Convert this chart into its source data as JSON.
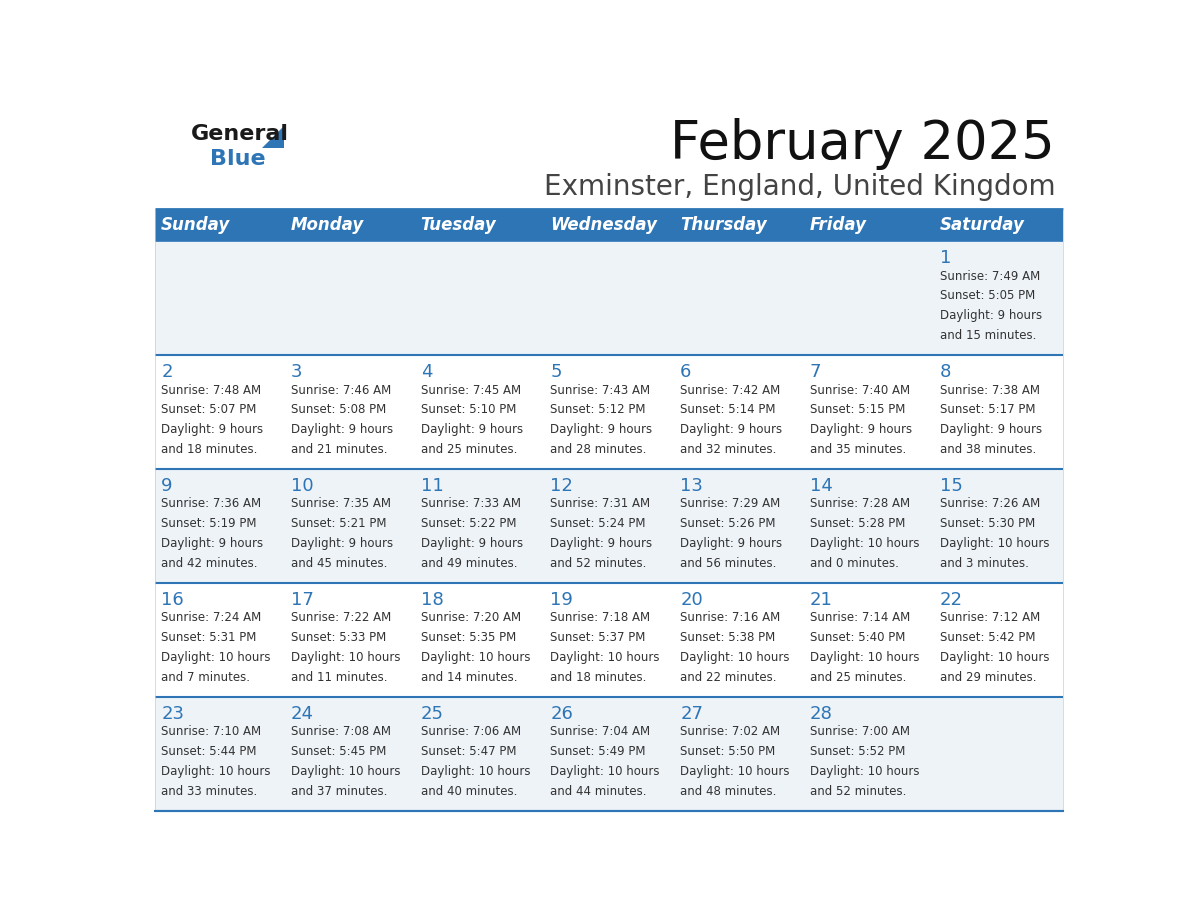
{
  "title": "February 2025",
  "subtitle": "Exminster, England, United Kingdom",
  "header_bg": "#2E75B6",
  "header_text_color": "#FFFFFF",
  "cell_bg_light": "#EEF3F8",
  "cell_bg_white": "#FFFFFF",
  "day_number_color": "#2E75B6",
  "info_text_color": "#333333",
  "separator_color": "#2E75B6",
  "days_of_week": [
    "Sunday",
    "Monday",
    "Tuesday",
    "Wednesday",
    "Thursday",
    "Friday",
    "Saturday"
  ],
  "calendar_data": [
    [
      null,
      null,
      null,
      null,
      null,
      null,
      {
        "day": "1",
        "sunrise": "7:49 AM",
        "sunset": "5:05 PM",
        "daylight_h": "9 hours",
        "daylight_m": "and 15 minutes."
      }
    ],
    [
      {
        "day": "2",
        "sunrise": "7:48 AM",
        "sunset": "5:07 PM",
        "daylight_h": "9 hours",
        "daylight_m": "and 18 minutes."
      },
      {
        "day": "3",
        "sunrise": "7:46 AM",
        "sunset": "5:08 PM",
        "daylight_h": "9 hours",
        "daylight_m": "and 21 minutes."
      },
      {
        "day": "4",
        "sunrise": "7:45 AM",
        "sunset": "5:10 PM",
        "daylight_h": "9 hours",
        "daylight_m": "and 25 minutes."
      },
      {
        "day": "5",
        "sunrise": "7:43 AM",
        "sunset": "5:12 PM",
        "daylight_h": "9 hours",
        "daylight_m": "and 28 minutes."
      },
      {
        "day": "6",
        "sunrise": "7:42 AM",
        "sunset": "5:14 PM",
        "daylight_h": "9 hours",
        "daylight_m": "and 32 minutes."
      },
      {
        "day": "7",
        "sunrise": "7:40 AM",
        "sunset": "5:15 PM",
        "daylight_h": "9 hours",
        "daylight_m": "and 35 minutes."
      },
      {
        "day": "8",
        "sunrise": "7:38 AM",
        "sunset": "5:17 PM",
        "daylight_h": "9 hours",
        "daylight_m": "and 38 minutes."
      }
    ],
    [
      {
        "day": "9",
        "sunrise": "7:36 AM",
        "sunset": "5:19 PM",
        "daylight_h": "9 hours",
        "daylight_m": "and 42 minutes."
      },
      {
        "day": "10",
        "sunrise": "7:35 AM",
        "sunset": "5:21 PM",
        "daylight_h": "9 hours",
        "daylight_m": "and 45 minutes."
      },
      {
        "day": "11",
        "sunrise": "7:33 AM",
        "sunset": "5:22 PM",
        "daylight_h": "9 hours",
        "daylight_m": "and 49 minutes."
      },
      {
        "day": "12",
        "sunrise": "7:31 AM",
        "sunset": "5:24 PM",
        "daylight_h": "9 hours",
        "daylight_m": "and 52 minutes."
      },
      {
        "day": "13",
        "sunrise": "7:29 AM",
        "sunset": "5:26 PM",
        "daylight_h": "9 hours",
        "daylight_m": "and 56 minutes."
      },
      {
        "day": "14",
        "sunrise": "7:28 AM",
        "sunset": "5:28 PM",
        "daylight_h": "10 hours",
        "daylight_m": "and 0 minutes."
      },
      {
        "day": "15",
        "sunrise": "7:26 AM",
        "sunset": "5:30 PM",
        "daylight_h": "10 hours",
        "daylight_m": "and 3 minutes."
      }
    ],
    [
      {
        "day": "16",
        "sunrise": "7:24 AM",
        "sunset": "5:31 PM",
        "daylight_h": "10 hours",
        "daylight_m": "and 7 minutes."
      },
      {
        "day": "17",
        "sunrise": "7:22 AM",
        "sunset": "5:33 PM",
        "daylight_h": "10 hours",
        "daylight_m": "and 11 minutes."
      },
      {
        "day": "18",
        "sunrise": "7:20 AM",
        "sunset": "5:35 PM",
        "daylight_h": "10 hours",
        "daylight_m": "and 14 minutes."
      },
      {
        "day": "19",
        "sunrise": "7:18 AM",
        "sunset": "5:37 PM",
        "daylight_h": "10 hours",
        "daylight_m": "and 18 minutes."
      },
      {
        "day": "20",
        "sunrise": "7:16 AM",
        "sunset": "5:38 PM",
        "daylight_h": "10 hours",
        "daylight_m": "and 22 minutes."
      },
      {
        "day": "21",
        "sunrise": "7:14 AM",
        "sunset": "5:40 PM",
        "daylight_h": "10 hours",
        "daylight_m": "and 25 minutes."
      },
      {
        "day": "22",
        "sunrise": "7:12 AM",
        "sunset": "5:42 PM",
        "daylight_h": "10 hours",
        "daylight_m": "and 29 minutes."
      }
    ],
    [
      {
        "day": "23",
        "sunrise": "7:10 AM",
        "sunset": "5:44 PM",
        "daylight_h": "10 hours",
        "daylight_m": "and 33 minutes."
      },
      {
        "day": "24",
        "sunrise": "7:08 AM",
        "sunset": "5:45 PM",
        "daylight_h": "10 hours",
        "daylight_m": "and 37 minutes."
      },
      {
        "day": "25",
        "sunrise": "7:06 AM",
        "sunset": "5:47 PM",
        "daylight_h": "10 hours",
        "daylight_m": "and 40 minutes."
      },
      {
        "day": "26",
        "sunrise": "7:04 AM",
        "sunset": "5:49 PM",
        "daylight_h": "10 hours",
        "daylight_m": "and 44 minutes."
      },
      {
        "day": "27",
        "sunrise": "7:02 AM",
        "sunset": "5:50 PM",
        "daylight_h": "10 hours",
        "daylight_m": "and 48 minutes."
      },
      {
        "day": "28",
        "sunrise": "7:00 AM",
        "sunset": "5:52 PM",
        "daylight_h": "10 hours",
        "daylight_m": "and 52 minutes."
      },
      null
    ]
  ],
  "logo_color_general": "#1a1a1a",
  "logo_color_blue": "#2E75B6",
  "title_fontsize": 38,
  "subtitle_fontsize": 20,
  "header_fontsize": 12,
  "day_num_fontsize": 13,
  "info_fontsize": 8.5
}
